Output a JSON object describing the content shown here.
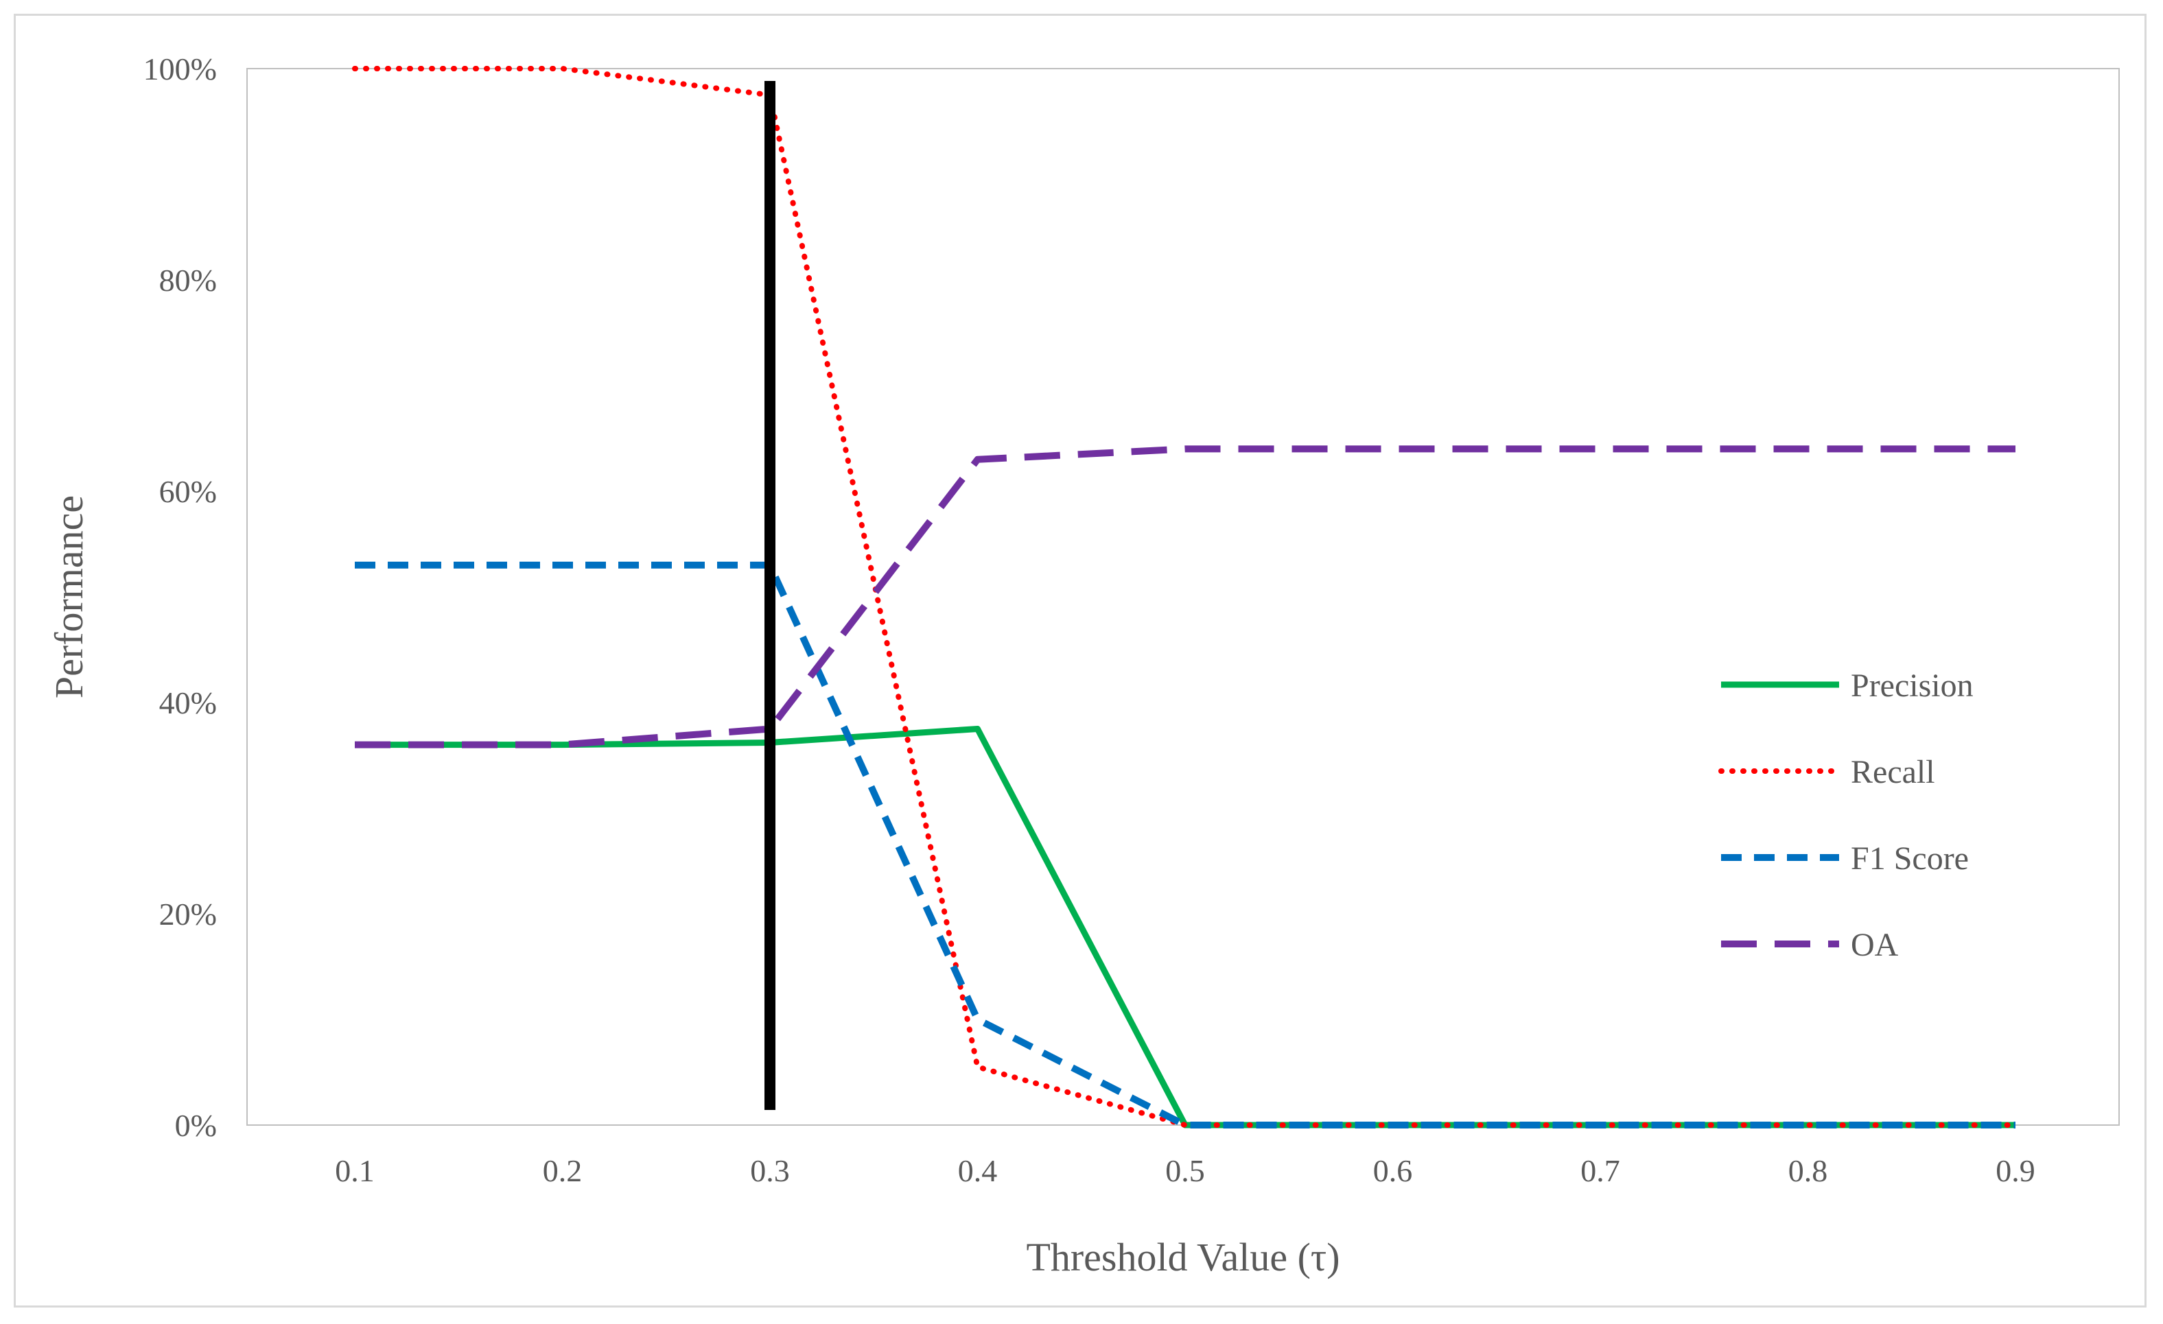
{
  "chart_data": {
    "type": "line",
    "title": "",
    "xlabel": "Threshold Value (τ)",
    "ylabel": "Performance",
    "x": [
      0.1,
      0.2,
      0.3,
      0.4,
      0.5,
      0.6,
      0.7,
      0.8,
      0.9
    ],
    "x_tick_labels": [
      "0.1",
      "0.2",
      "0.3",
      "0.4",
      "0.5",
      "0.6",
      "0.7",
      "0.8",
      "0.9"
    ],
    "ylim": [
      0,
      100
    ],
    "y_ticks": [
      0,
      20,
      40,
      60,
      80,
      100
    ],
    "y_tick_labels": [
      "0%",
      "20%",
      "40%",
      "60%",
      "80%",
      "100%"
    ],
    "grid": false,
    "legend_position": "right",
    "series": [
      {
        "name": "Precision",
        "color": "#00b050",
        "dash": "solid",
        "values": [
          36,
          36,
          36.2,
          37.5,
          0,
          0,
          0,
          0,
          0
        ]
      },
      {
        "name": "Recall",
        "color": "#ff0000",
        "dash": "dotted",
        "values": [
          100,
          100,
          97.5,
          5.5,
          0,
          0,
          0,
          0,
          0
        ]
      },
      {
        "name": "F1 Score",
        "color": "#0070c0",
        "dash": "dashed",
        "values": [
          53,
          53,
          53,
          10,
          0,
          0,
          0,
          0,
          0
        ]
      },
      {
        "name": "OA",
        "color": "#7030a0",
        "dash": "longdash",
        "values": [
          36,
          36,
          37.5,
          63,
          64,
          64,
          64,
          64,
          64
        ]
      }
    ],
    "annotations": [
      {
        "type": "vertical-line",
        "x": 0.3,
        "color": "#000000"
      }
    ]
  }
}
